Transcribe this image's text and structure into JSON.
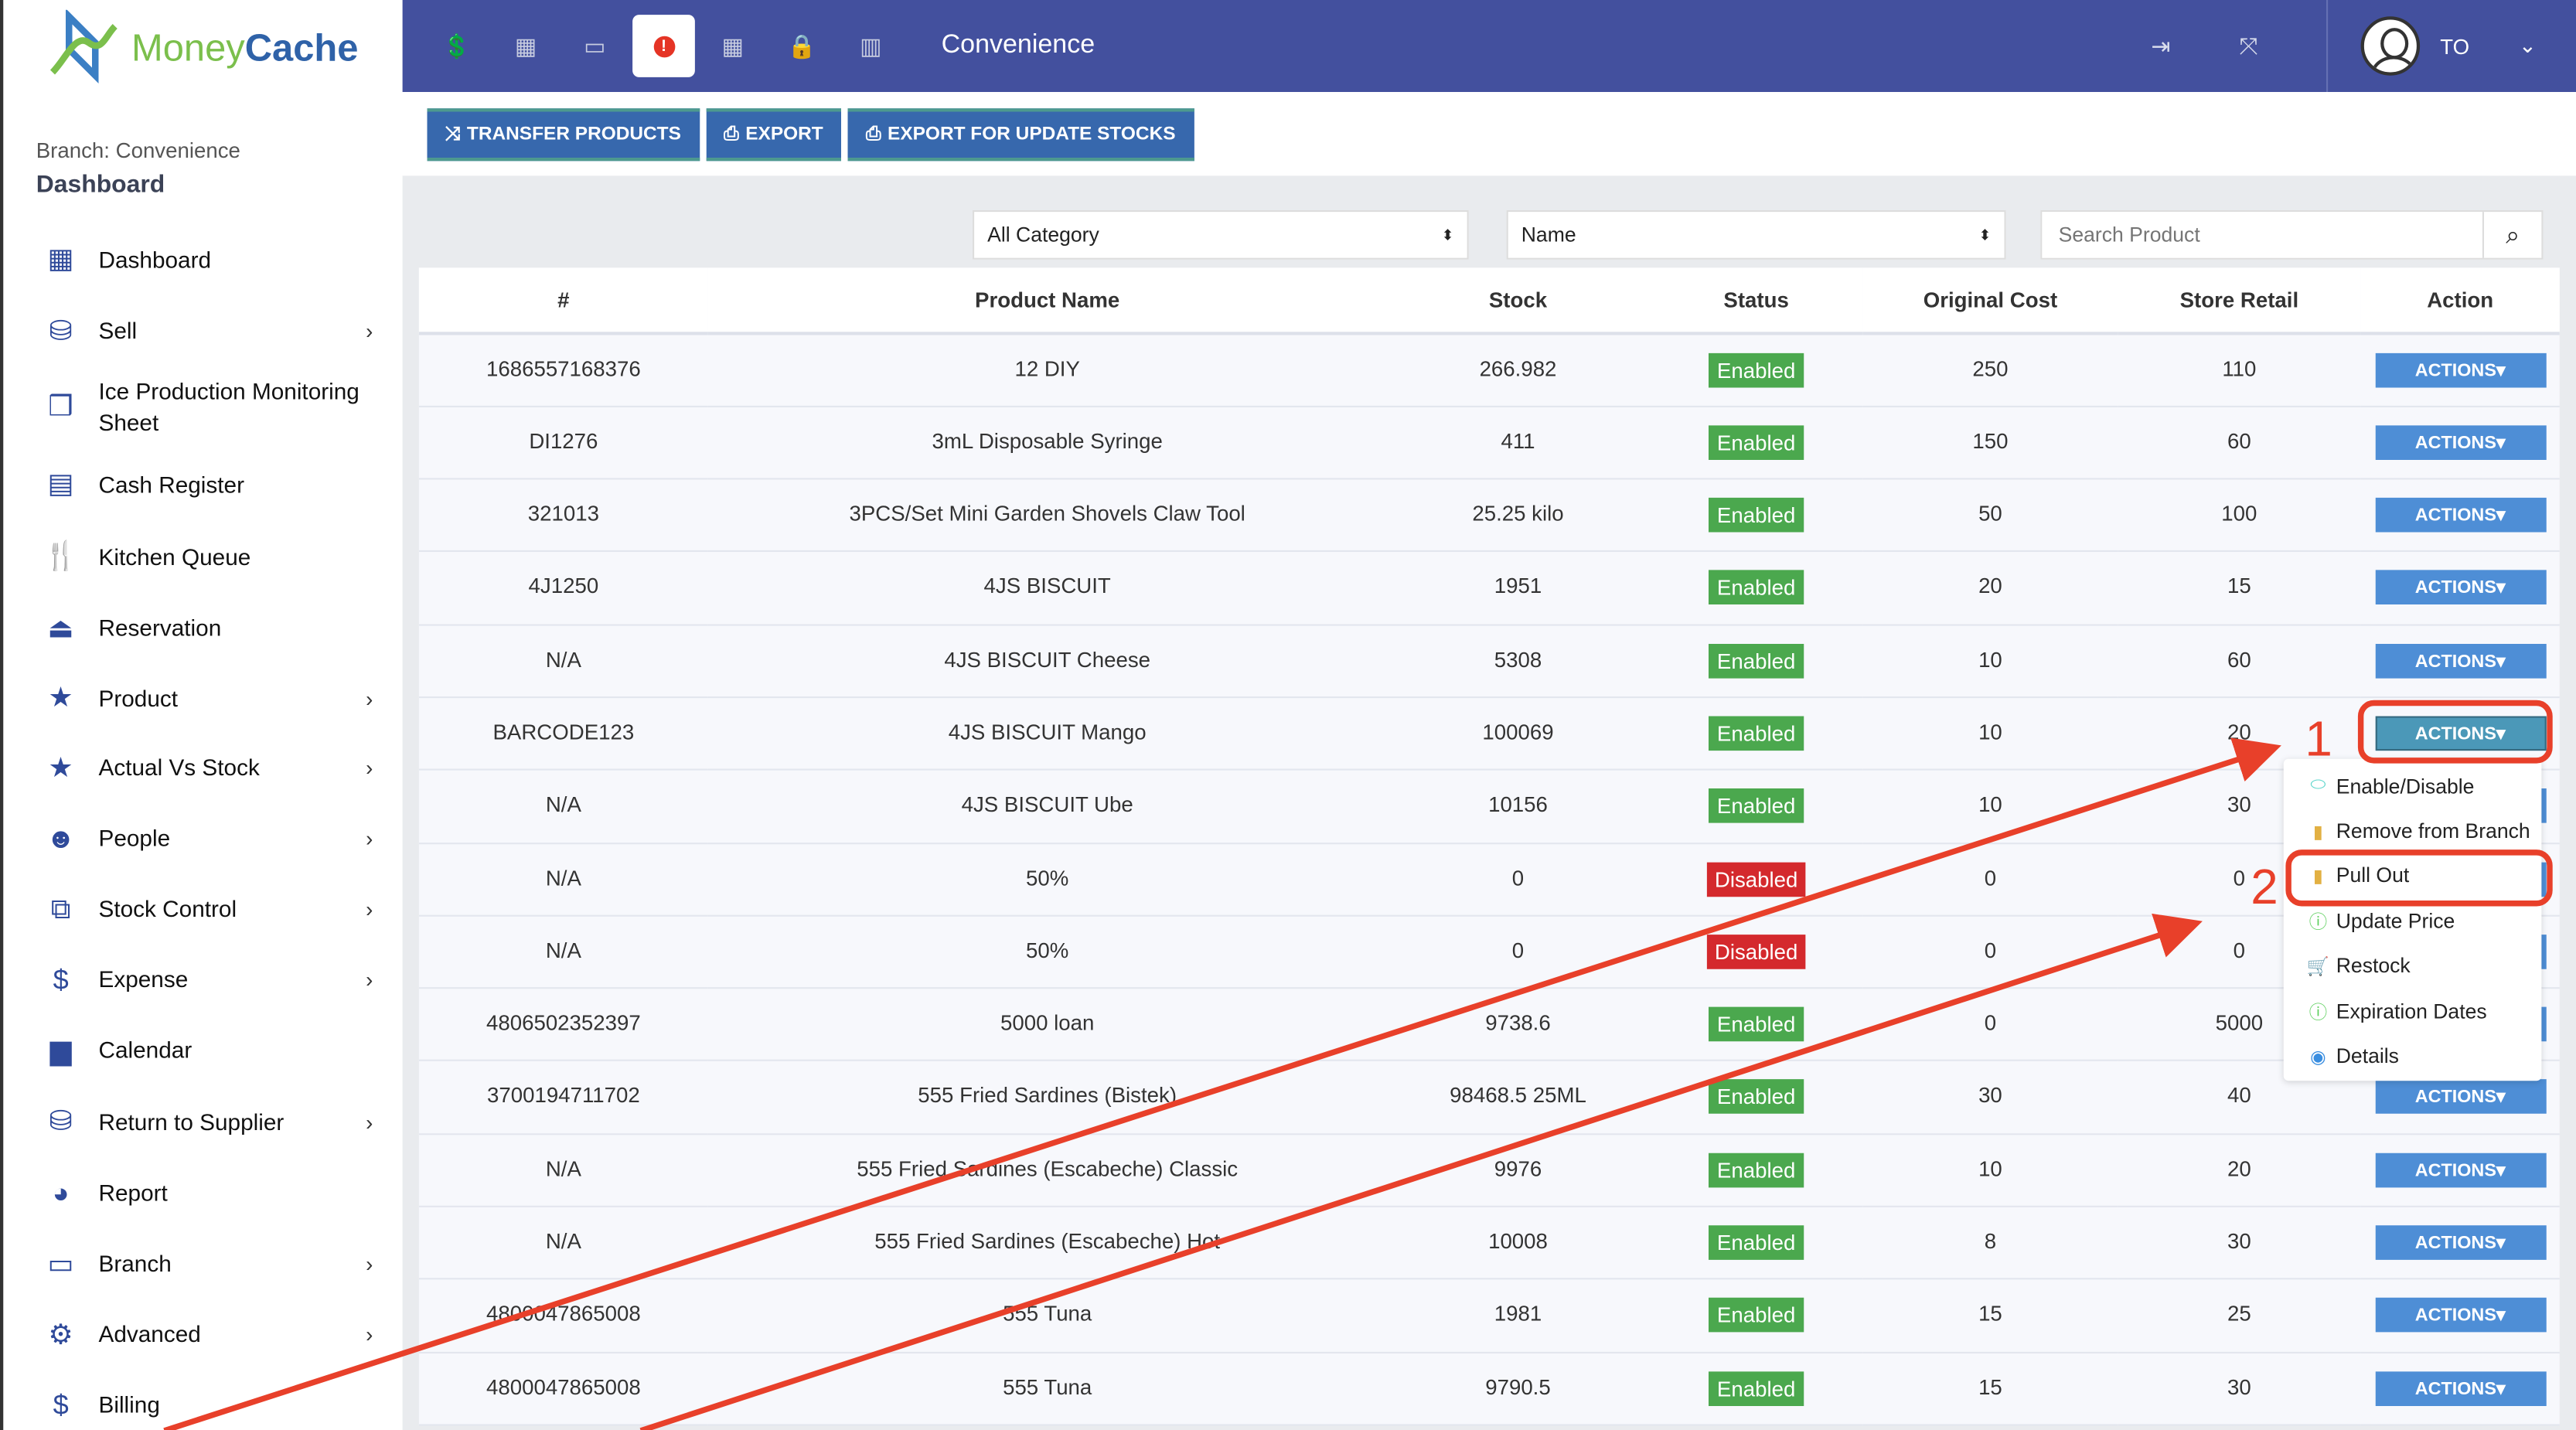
{
  "logo": {
    "part1": "Money",
    "part2": "Cache"
  },
  "sidebar": {
    "branch": "Branch: Convenience",
    "title": "Dashboard",
    "items": [
      {
        "label": "Dashboard",
        "icon": "grid-icon",
        "glyph": "▦",
        "chev": false
      },
      {
        "label": "Sell",
        "icon": "coins-icon",
        "glyph": "⛁",
        "chev": true
      },
      {
        "label": "Ice Production Monitoring Sheet",
        "icon": "cube-icon",
        "glyph": "❒",
        "chev": false
      },
      {
        "label": "Cash Register",
        "icon": "cash-register-icon",
        "glyph": "▤",
        "chev": false
      },
      {
        "label": "Kitchen Queue",
        "icon": "utensils-icon",
        "glyph": "🍴",
        "chev": false
      },
      {
        "label": "Reservation",
        "icon": "bell-icon",
        "glyph": "⏏",
        "chev": false
      },
      {
        "label": "Product",
        "icon": "star-icon",
        "glyph": "★",
        "chev": true
      },
      {
        "label": "Actual Vs Stock",
        "icon": "star-icon",
        "glyph": "★",
        "chev": true
      },
      {
        "label": "People",
        "icon": "smile-icon",
        "glyph": "☻",
        "chev": true
      },
      {
        "label": "Stock Control",
        "icon": "boxes-icon",
        "glyph": "⧉",
        "chev": true
      },
      {
        "label": "Expense",
        "icon": "dollar-icon",
        "glyph": "$",
        "chev": true
      },
      {
        "label": "Calendar",
        "icon": "calendar-icon",
        "glyph": "▆",
        "chev": false
      },
      {
        "label": "Return to Supplier",
        "icon": "coins-icon",
        "glyph": "⛁",
        "chev": true
      },
      {
        "label": "Report",
        "icon": "pie-chart-icon",
        "glyph": "◕",
        "chev": false
      },
      {
        "label": "Branch",
        "icon": "store-icon",
        "glyph": "▭",
        "chev": true
      },
      {
        "label": "Advanced",
        "icon": "gear-icon",
        "glyph": "⚙",
        "chev": true
      },
      {
        "label": "Billing",
        "icon": "dollar-icon",
        "glyph": "$",
        "chev": false
      }
    ]
  },
  "topbar": {
    "title": "Convenience",
    "user": "TO",
    "icons": [
      "hand-dollar-icon",
      "calculator-icon",
      "monitor-icon",
      "alert-icon",
      "grid-icon",
      "lock-icon",
      "bar-chart-icon"
    ]
  },
  "toolbar": {
    "transfer": "TRANSFER PRODUCTS",
    "export": "EXPORT",
    "export_update": "EXPORT FOR UPDATE STOCKS"
  },
  "filters": {
    "category": "All Category",
    "sort": "Name",
    "search_placeholder": "Search Product"
  },
  "table": {
    "headers": [
      "#",
      "Product Name",
      "Stock",
      "Status",
      "Original Cost",
      "Store Retail",
      "Action"
    ],
    "action_label": "ACTIONS",
    "rows": [
      [
        "1686557168376",
        "12 DIY",
        "266.982",
        "Enabled",
        "250",
        "110"
      ],
      [
        "DI1276",
        "3mL Disposable Syringe",
        "411",
        "Enabled",
        "150",
        "60"
      ],
      [
        "321013",
        "3PCS/Set Mini Garden Shovels Claw Tool",
        "25.25 kilo",
        "Enabled",
        "50",
        "100"
      ],
      [
        "4J1250",
        "4JS BISCUIT",
        "1951",
        "Enabled",
        "20",
        "15"
      ],
      [
        "N/A",
        "4JS BISCUIT Cheese",
        "5308",
        "Enabled",
        "10",
        "60"
      ],
      [
        "BARCODE123",
        "4JS BISCUIT Mango",
        "100069",
        "Enabled",
        "10",
        "20"
      ],
      [
        "N/A",
        "4JS BISCUIT Ube",
        "10156",
        "Enabled",
        "10",
        "30"
      ],
      [
        "N/A",
        "50%",
        "0",
        "Disabled",
        "0",
        "0"
      ],
      [
        "N/A",
        "50%",
        "0",
        "Disabled",
        "0",
        "0"
      ],
      [
        "4806502352397",
        "5000 loan",
        "9738.6",
        "Enabled",
        "0",
        "5000"
      ],
      [
        "3700194711702",
        "555 Fried Sardines (Bistek)",
        "98468.5 25ML",
        "Enabled",
        "30",
        "40"
      ],
      [
        "N/A",
        "555 Fried Sardines (Escabeche) Classic",
        "9976",
        "Enabled",
        "10",
        "20"
      ],
      [
        "N/A",
        "555 Fried Sardines (Escabeche) Hot",
        "10008",
        "Enabled",
        "8",
        "30"
      ],
      [
        "4800047865008",
        "555 Tuna",
        "1981",
        "Enabled",
        "15",
        "25"
      ],
      [
        "4800047865008",
        "555 Tuna",
        "9790.5",
        "Enabled",
        "15",
        "30"
      ]
    ]
  },
  "menu": [
    {
      "label": "Enable/Disable",
      "icon": "toggle-icon",
      "glyph": "⬭",
      "color": "#5fd6cc"
    },
    {
      "label": "Remove from Branch",
      "icon": "trash-icon",
      "glyph": "▮",
      "color": "#e2b043"
    },
    {
      "label": "Pull Out",
      "icon": "trash-icon",
      "glyph": "▮",
      "color": "#e2b043"
    },
    {
      "label": "Update Price",
      "icon": "info-circle-icon",
      "glyph": "ⓘ",
      "color": "#5ccf5c"
    },
    {
      "label": "Restock",
      "icon": "cart-icon",
      "glyph": "🛒",
      "color": "#3e938f"
    },
    {
      "label": "Expiration Dates",
      "icon": "info-circle-icon",
      "glyph": "ⓘ",
      "color": "#5ccf5c"
    },
    {
      "label": "Details",
      "icon": "eye-icon",
      "glyph": "◉",
      "color": "#3a8ee0"
    }
  ],
  "annotations": {
    "step1": "1",
    "step2": "2",
    "color": "#e8402a"
  },
  "colors": {
    "topbar": "#43509e",
    "button": "#3768ad",
    "enabled": "#4ba84e",
    "disabled": "#d4292d",
    "actions": "#4e8ed6"
  }
}
